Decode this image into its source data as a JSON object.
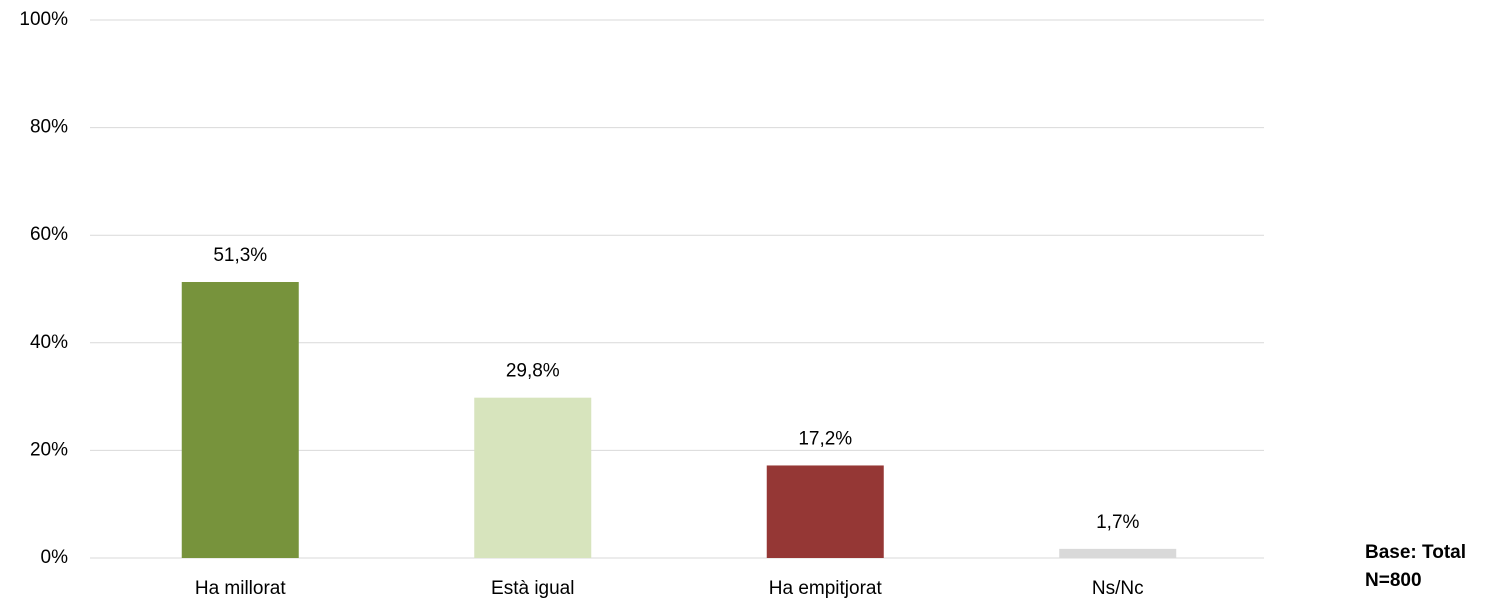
{
  "chart_data": {
    "type": "bar",
    "categories": [
      "Ha millorat",
      "Està igual",
      "Ha empitjorat",
      "Ns/Nc"
    ],
    "values": [
      51.3,
      29.8,
      17.2,
      1.7
    ],
    "value_labels": [
      "51,3%",
      "29,8%",
      "17,2%",
      "1,7%"
    ],
    "colors": [
      "#77933c",
      "#d7e4bd",
      "#953735",
      "#d9d9d9"
    ],
    "ylim": [
      0,
      100
    ],
    "yticks": [
      {
        "value": 0,
        "label": "0%"
      },
      {
        "value": 20,
        "label": "20%"
      },
      {
        "value": 40,
        "label": "40%"
      },
      {
        "value": 60,
        "label": "60%"
      },
      {
        "value": 80,
        "label": "80%"
      },
      {
        "value": 100,
        "label": "100%"
      }
    ],
    "grid": true,
    "annotations": [
      "Base: Total",
      "N=800"
    ]
  }
}
